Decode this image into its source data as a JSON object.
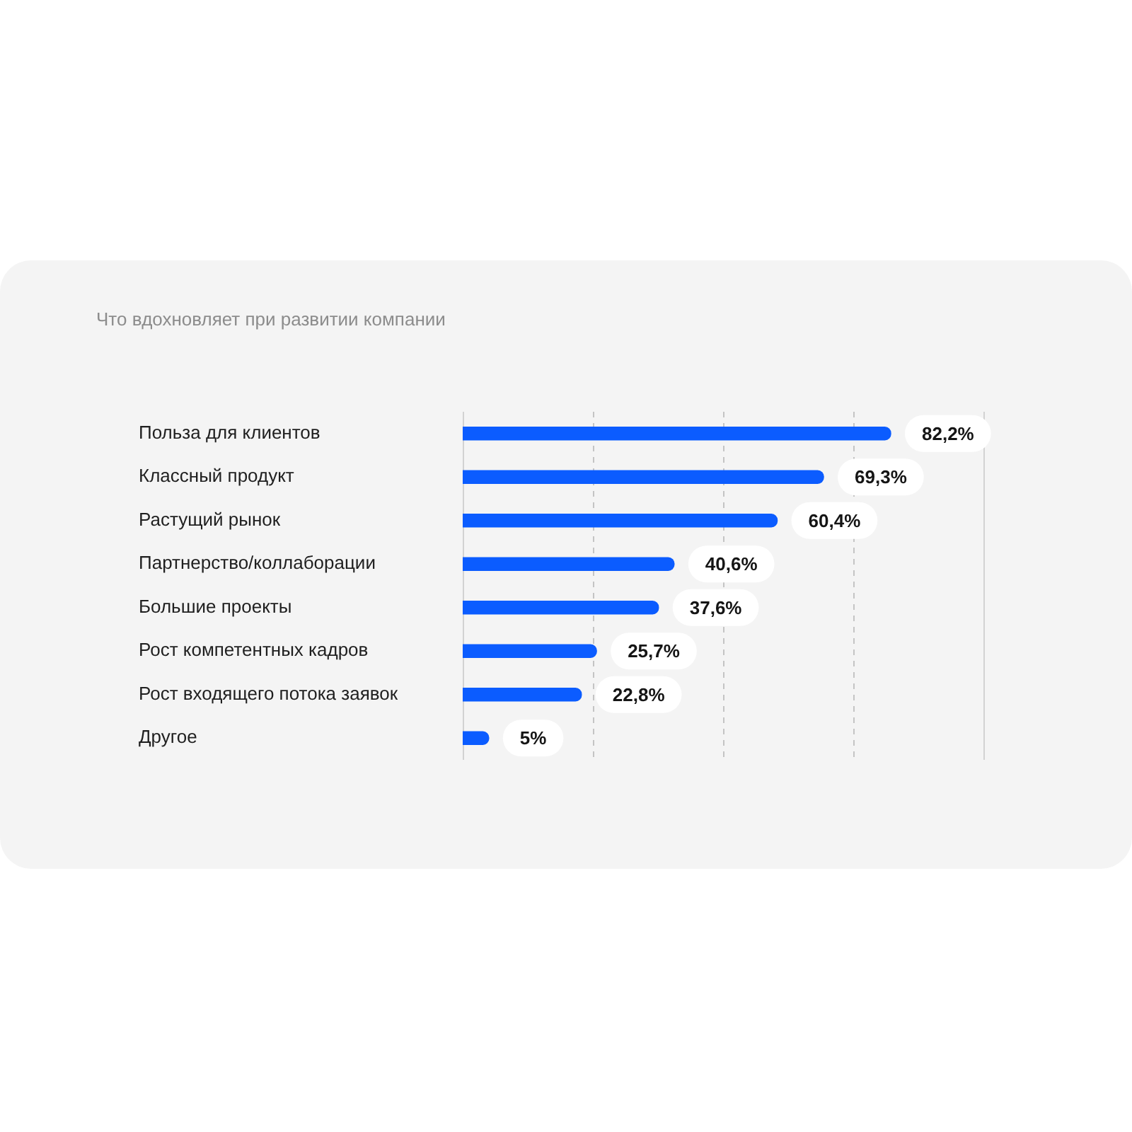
{
  "chart_data": {
    "type": "bar",
    "orientation": "horizontal",
    "title": "Что вдохновляет при развитии компании",
    "categories": [
      "Польза для клиентов",
      "Классный продукт",
      "Растущий рынок",
      "Партнерство/коллаборации",
      "Большие проекты",
      "Рост компетентных кадров",
      "Рост входящего потока заявок",
      "Другое"
    ],
    "values": [
      82.2,
      69.3,
      60.4,
      40.6,
      37.6,
      25.7,
      22.8,
      5
    ],
    "value_labels": [
      "82,2%",
      "69,3%",
      "60,4%",
      "40,6%",
      "37,6%",
      "25,7%",
      "22,8%",
      "5%"
    ],
    "color": "#0b5cff",
    "xlim": [
      0,
      100
    ],
    "xticks": [
      {
        "value": 0,
        "label": null
      },
      {
        "value": 25,
        "label": null
      },
      {
        "value": 50,
        "label": null
      },
      {
        "value": 75,
        "label": null
      },
      {
        "value": 100,
        "label": null
      }
    ],
    "grid": "x",
    "tick_labels": "y"
  }
}
